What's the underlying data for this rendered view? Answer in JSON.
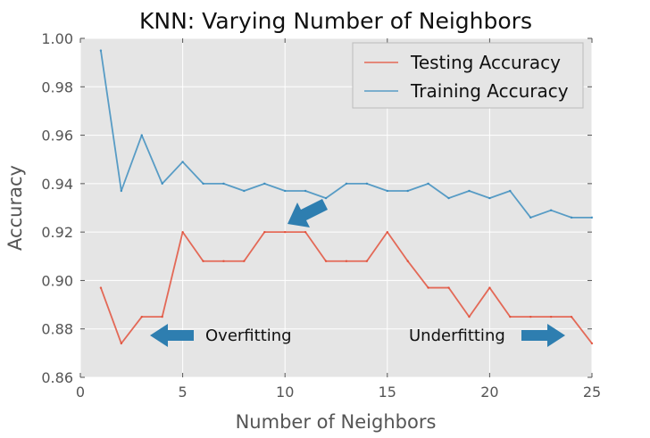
{
  "chart_data": {
    "type": "line",
    "title": "KNN: Varying Number of Neighbors",
    "xlabel": "Number of Neighbors",
    "ylabel": "Accuracy",
    "xlim": [
      0,
      25
    ],
    "ylim": [
      0.86,
      1.0
    ],
    "xticks": [
      "0",
      "5",
      "10",
      "15",
      "20",
      "25"
    ],
    "yticks": [
      "0.86",
      "0.88",
      "0.90",
      "0.92",
      "0.94",
      "0.96",
      "0.98",
      "1.00"
    ],
    "grid": true,
    "legend_position": "top-right",
    "x": [
      1,
      2,
      3,
      4,
      5,
      6,
      7,
      8,
      9,
      10,
      11,
      12,
      13,
      14,
      15,
      16,
      17,
      18,
      19,
      20,
      21,
      22,
      23,
      24,
      25
    ],
    "series": [
      {
        "name": "Testing Accuracy",
        "color": "#E24A33",
        "values": [
          0.897,
          0.874,
          0.885,
          0.885,
          0.92,
          0.908,
          0.908,
          0.908,
          0.92,
          0.92,
          0.92,
          0.908,
          0.908,
          0.908,
          0.92,
          0.908,
          0.897,
          0.897,
          0.885,
          0.897,
          0.885,
          0.885,
          0.885,
          0.885,
          0.874
        ]
      },
      {
        "name": "Training Accuracy",
        "color": "#348ABD",
        "values": [
          0.995,
          0.937,
          0.96,
          0.94,
          0.949,
          0.94,
          0.94,
          0.937,
          0.94,
          0.937,
          0.937,
          0.934,
          0.94,
          0.94,
          0.937,
          0.937,
          0.94,
          0.934,
          0.937,
          0.934,
          0.937,
          0.926,
          0.929,
          0.926,
          0.926
        ]
      }
    ],
    "annotations": [
      {
        "text": "Overfitting",
        "arrow_direction": "left"
      },
      {
        "text": "Underfitting",
        "arrow_direction": "right"
      }
    ],
    "annotation_arrow_color": "#2E7EB0",
    "plot_background": "#E5E5E5"
  }
}
